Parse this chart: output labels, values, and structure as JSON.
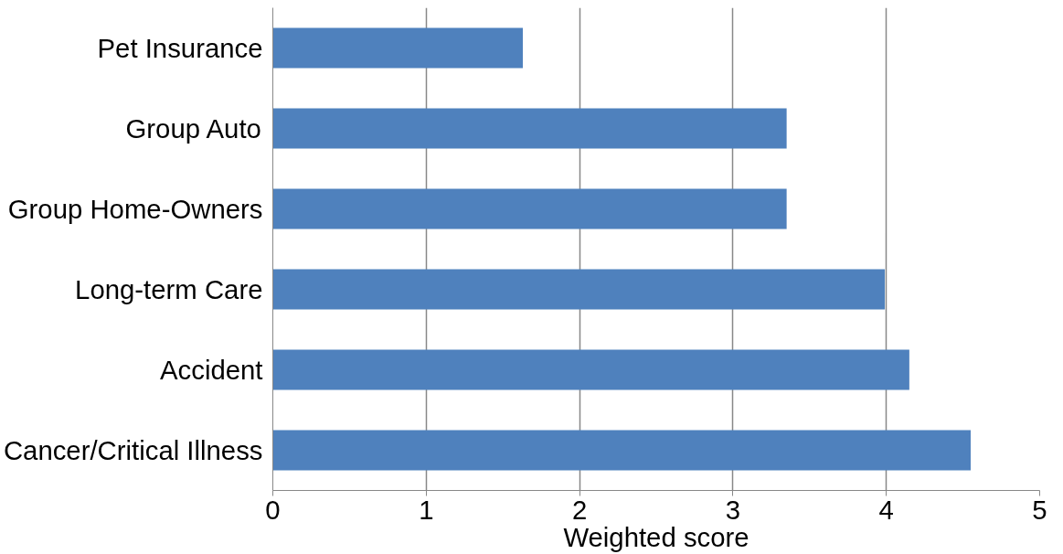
{
  "chart_data": {
    "type": "bar",
    "orientation": "horizontal",
    "xlabel": "Weighted score",
    "categories": [
      "Pet Insurance",
      "Group Auto",
      "Group Home-Owners",
      "Long-term Care",
      "Accident",
      "Cancer/Critical Illness"
    ],
    "values": [
      1.63,
      3.35,
      3.35,
      3.99,
      4.15,
      4.55
    ],
    "color": "#4f81bd",
    "xlim": [
      0,
      5
    ],
    "xticks": [
      0,
      1,
      2,
      3,
      4,
      5
    ],
    "grid": "x"
  }
}
